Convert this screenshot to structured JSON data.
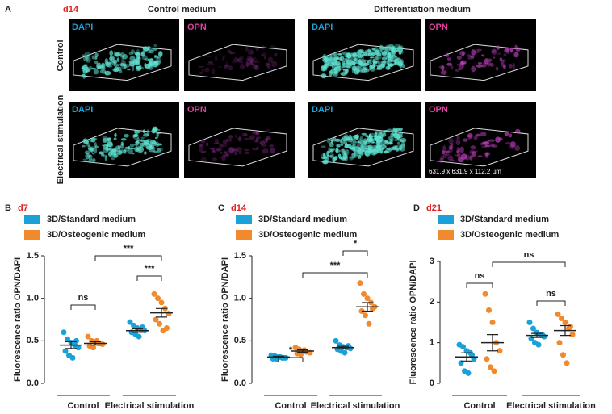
{
  "panel_a": {
    "letter": "A",
    "day": "d14",
    "columns": [
      "Control medium",
      "Differentiation medium"
    ],
    "rows": [
      "Control",
      "Electrical stimulation"
    ],
    "stains": [
      "DAPI",
      "OPN"
    ],
    "scale": "631.9 x 631.9 x 112.2 µm"
  },
  "chart_data": [
    {
      "type": "scatter",
      "panel": "B",
      "title": "d7",
      "y_label": "Fluorescence ratio OPN/DAPI",
      "categories": [
        "Control",
        "Electrical stimulation"
      ],
      "ylim": [
        0,
        1.5
      ],
      "yticks": [
        {
          "value": 0,
          "label": "0.0"
        },
        {
          "value": 0.5,
          "label": "0.5"
        },
        {
          "value": 1,
          "label": "1.0"
        },
        {
          "value": 1.5,
          "label": "1.5"
        }
      ],
      "series": [
        {
          "name": "3D/Standard medium",
          "color": "#1ba1d8",
          "values": [
            [
              0.6,
              0.52,
              0.48,
              0.45,
              0.42,
              0.38,
              0.33,
              0.3,
              0.5
            ],
            [
              0.72,
              0.68,
              0.65,
              0.63,
              0.62,
              0.6,
              0.58,
              0.55,
              0.66
            ]
          ],
          "mean": [
            0.45,
            0.62
          ],
          "sem": [
            0.04,
            0.02
          ]
        },
        {
          "name": "3D/Osteogenic medium",
          "color": "#f08a2c",
          "values": [
            [
              0.55,
              0.5,
              0.48,
              0.47,
              0.46,
              0.44,
              0.42,
              0.5
            ],
            [
              1.05,
              1.0,
              0.95,
              0.88,
              0.82,
              0.75,
              0.7,
              0.62,
              0.65
            ]
          ],
          "mean": [
            0.47,
            0.83
          ],
          "sem": [
            0.02,
            0.05
          ]
        }
      ],
      "annotations": [
        "ns",
        "***",
        "***"
      ]
    },
    {
      "type": "scatter",
      "panel": "C",
      "title": "d14",
      "y_label": "Fluorescence ratio OPN/DAPI",
      "categories": [
        "Control",
        "Electrical stimulation"
      ],
      "ylim": [
        0,
        1.5
      ],
      "yticks": [
        {
          "value": 0,
          "label": "0.0"
        },
        {
          "value": 0.5,
          "label": "0.5"
        },
        {
          "value": 1,
          "label": "1.0"
        },
        {
          "value": 1.5,
          "label": "1.5"
        }
      ],
      "series": [
        {
          "name": "3D/Standard medium",
          "color": "#1ba1d8",
          "values": [
            [
              0.33,
              0.32,
              0.31,
              0.3,
              0.3,
              0.29,
              0.28,
              0.31,
              0.3
            ],
            [
              0.5,
              0.45,
              0.43,
              0.42,
              0.41,
              0.4,
              0.38,
              0.36,
              0.44
            ]
          ],
          "mean": [
            0.31,
            0.42
          ],
          "sem": [
            0.01,
            0.015
          ]
        },
        {
          "name": "3D/Osteogenic medium",
          "color": "#f08a2c",
          "values": [
            [
              0.42,
              0.4,
              0.38,
              0.37,
              0.36,
              0.35,
              0.34,
              0.39
            ],
            [
              1.18,
              1.05,
              1.0,
              0.95,
              0.9,
              0.85,
              0.8,
              0.7,
              0.88
            ]
          ],
          "mean": [
            0.38,
            0.9
          ],
          "sem": [
            0.015,
            0.05
          ]
        }
      ],
      "annotations": [
        "*",
        "*",
        "***"
      ]
    },
    {
      "type": "scatter",
      "panel": "D",
      "title": "d21",
      "y_label": "Fluorescence ratio OPN/DAPI",
      "categories": [
        "Control",
        "Electrical stimulation"
      ],
      "ylim": [
        0,
        3
      ],
      "yticks": [
        0,
        1,
        2,
        3
      ],
      "series": [
        {
          "name": "3D/Standard medium",
          "color": "#1ba1d8",
          "values": [
            [
              0.95,
              0.9,
              0.8,
              0.75,
              0.6,
              0.5,
              0.3,
              0.25,
              0.7
            ],
            [
              1.5,
              1.35,
              1.25,
              1.2,
              1.15,
              1.1,
              1.0,
              0.95,
              1.2
            ]
          ],
          "mean": [
            0.65,
            1.18
          ],
          "sem": [
            0.1,
            0.05
          ]
        },
        {
          "name": "3D/Osteogenic medium",
          "color": "#f08a2c",
          "values": [
            [
              2.2,
              1.8,
              1.5,
              1.0,
              0.8,
              0.6,
              0.4,
              0.3
            ],
            [
              1.7,
              1.6,
              1.5,
              1.35,
              1.2,
              1.0,
              0.7,
              0.5,
              1.4
            ]
          ],
          "mean": [
            1.0,
            1.3
          ],
          "sem": [
            0.2,
            0.12
          ]
        }
      ],
      "annotations": [
        "ns",
        "ns",
        "ns"
      ]
    }
  ]
}
